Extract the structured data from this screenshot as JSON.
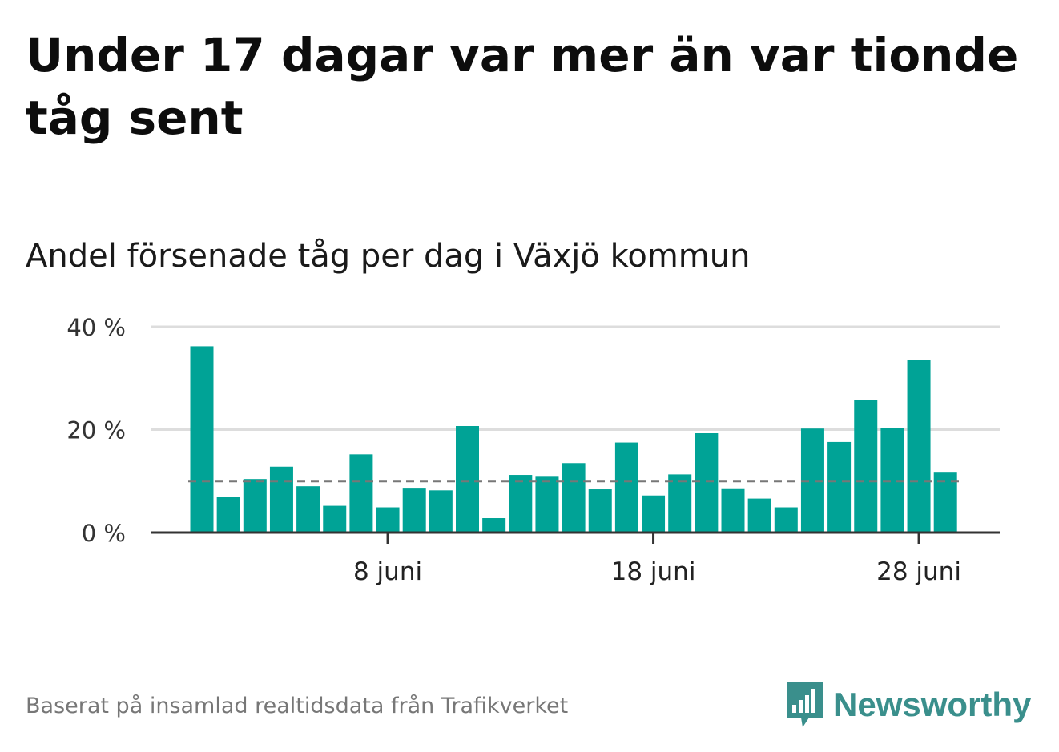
{
  "title": "Under 17 dagar var mer än var tionde tåg sent",
  "subtitle": "Andel försenade tåg per dag i Växjö kommun",
  "footer": "Baserat på insamlad realtidsdata från Trafikverket",
  "brand": {
    "name": "Newsworthy",
    "icon": "newsworthy-bars-icon",
    "color": "#3a8f8c"
  },
  "colors": {
    "bar": "#00a396",
    "reference_line": "#777777",
    "grid": "#dddddd",
    "axis": "#333333"
  },
  "chart_data": {
    "type": "bar",
    "x": [
      "2020-06-01",
      "2020-06-02",
      "2020-06-03",
      "2020-06-04",
      "2020-06-05",
      "2020-06-06",
      "2020-06-07",
      "2020-06-08",
      "2020-06-09",
      "2020-06-10",
      "2020-06-11",
      "2020-06-12",
      "2020-06-13",
      "2020-06-14",
      "2020-06-15",
      "2020-06-16",
      "2020-06-17",
      "2020-06-18",
      "2020-06-19",
      "2020-06-20",
      "2020-06-21",
      "2020-06-22",
      "2020-06-23",
      "2020-06-24",
      "2020-06-25",
      "2020-06-26",
      "2020-06-27",
      "2020-06-28",
      "2020-06-29"
    ],
    "values": [
      36.2,
      6.9,
      10.4,
      12.8,
      9.0,
      5.2,
      15.2,
      4.9,
      8.7,
      8.2,
      20.7,
      2.8,
      11.2,
      11.0,
      13.5,
      8.4,
      17.5,
      7.2,
      11.3,
      19.3,
      8.6,
      6.6,
      4.9,
      20.2,
      17.6,
      25.8,
      20.3,
      33.5,
      11.8
    ],
    "reference_line": 10,
    "ylim": [
      0,
      40
    ],
    "yticks": [
      0,
      20,
      40
    ],
    "ytick_labels": [
      "0 %",
      "20 %",
      "40 %"
    ],
    "xticks": [
      "2020-06-08",
      "2020-06-18",
      "2020-06-28"
    ],
    "xtick_labels": [
      "8 juni",
      "18 juni",
      "28 juni"
    ],
    "grid": true,
    "xlabel": "",
    "ylabel": ""
  }
}
